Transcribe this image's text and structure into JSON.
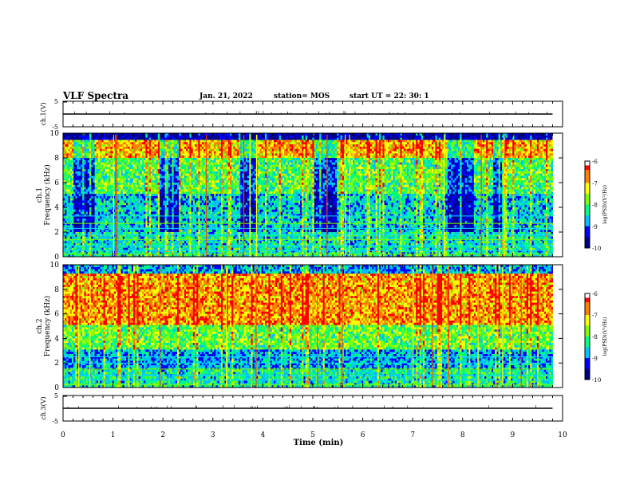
{
  "header": {
    "title": "VLF Spectra",
    "date": "Jan. 21, 2022",
    "station": "station= MOS",
    "start": "start  UT =   22: 30: 1"
  },
  "chart_data": [
    {
      "type": "line",
      "panel": "ch1-voltage",
      "ylabel": "ch.1(V)",
      "ylim": [
        -5,
        5
      ],
      "y_ticks": [
        "5",
        "-5"
      ],
      "series": [
        {
          "values": [
            0,
            0,
            0,
            0,
            0,
            0,
            0,
            0,
            0,
            0,
            0
          ]
        }
      ],
      "x": [
        0,
        1,
        2,
        3,
        4,
        5,
        6,
        7,
        8,
        9,
        9.8
      ]
    },
    {
      "type": "heatmap",
      "panel": "ch1-spectrogram",
      "ylabel": "ch.1\nFrequency (kHz)",
      "ylim": [
        0,
        10
      ],
      "y_ticks": [
        "0",
        "2",
        "4",
        "6",
        "8",
        "10"
      ],
      "xlim": [
        0,
        9.8
      ],
      "colorbar": {
        "label": "log(PSD)(V²/Hz)",
        "ticks": [
          "-6",
          "-7",
          "-8",
          "-9",
          "-10"
        ],
        "range": [
          -10,
          -6
        ]
      },
      "bands_khz": [
        0.2,
        0.5,
        0.9,
        1.4,
        1.8,
        2.3,
        2.7,
        3.3
      ],
      "strong_band_khz": [
        8.0,
        9.0
      ],
      "quiet_intervals_min": [
        [
          0.2,
          0.6
        ],
        [
          1.9,
          2.3
        ],
        [
          3.5,
          3.9
        ],
        [
          5.0,
          5.5
        ],
        [
          7.6,
          8.2
        ],
        [
          8.6,
          8.8
        ]
      ]
    },
    {
      "type": "heatmap",
      "panel": "ch2-spectrogram",
      "ylabel": "ch.2\nFrequency (kHz)",
      "ylim": [
        0,
        10
      ],
      "y_ticks": [
        "0",
        "2",
        "4",
        "6",
        "8",
        "10"
      ],
      "xlim": [
        0,
        9.8
      ],
      "colorbar": {
        "label": "log(PSD)(V²/Hz)",
        "ticks": [
          "-6",
          "-7",
          "-8",
          "-9",
          "-10"
        ],
        "range": [
          -10,
          -6
        ]
      },
      "bands_khz": [
        0.2,
        0.6,
        1.0,
        1.5,
        2.0,
        2.5
      ],
      "strong_band_khz": [
        4.5,
        8.5
      ]
    },
    {
      "type": "line",
      "panel": "ch3-voltage",
      "ylabel": "ch.3(V)",
      "ylim": [
        -5,
        5
      ],
      "y_ticks": [
        "5",
        "-5"
      ],
      "series": [
        {
          "values": [
            0,
            0,
            0,
            0,
            0,
            0,
            0,
            0,
            0,
            0,
            0
          ]
        }
      ],
      "x": [
        0,
        1,
        2,
        3,
        4,
        5,
        6,
        7,
        8,
        9,
        9.8
      ],
      "xlabel": "Time (min)",
      "x_ticks": [
        "0",
        "1",
        "2",
        "3",
        "4",
        "5",
        "6",
        "7",
        "8",
        "9",
        "10"
      ],
      "xlim": [
        0,
        10
      ]
    }
  ],
  "colors": {
    "jet": [
      "#000080",
      "#0000ff",
      "#00c0ff",
      "#00ff80",
      "#80ff00",
      "#ffff00",
      "#ff8000",
      "#ff0000",
      "#ffffff"
    ]
  }
}
